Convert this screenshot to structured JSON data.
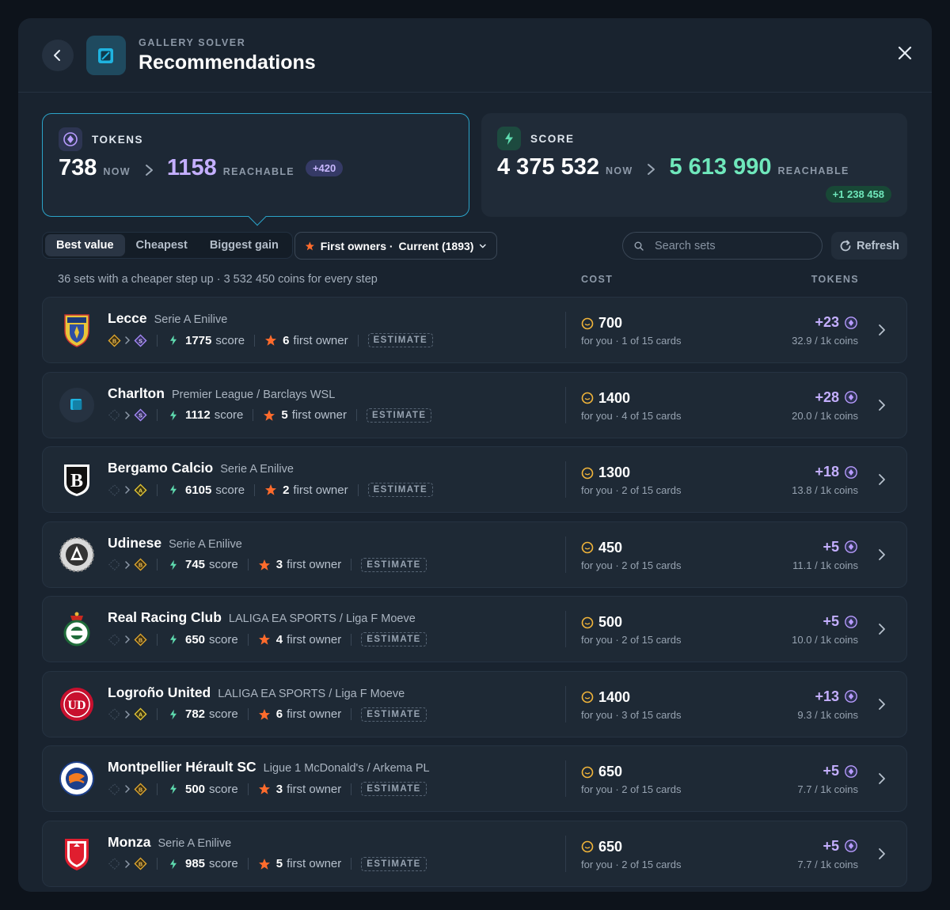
{
  "header": {
    "subtitle": "GALLERY SOLVER",
    "title": "Recommendations"
  },
  "tokens": {
    "label": "TOKENS",
    "now": "738",
    "now_label": "NOW",
    "reachable": "1158",
    "reachable_label": "REACHABLE",
    "gain": "+420"
  },
  "score": {
    "label": "SCORE",
    "now": "4 375 532",
    "now_label": "NOW",
    "reachable": "5 613 990",
    "reachable_label": "REACHABLE",
    "gain": "+1 238 458"
  },
  "sort_tabs": [
    "Best value",
    "Cheapest",
    "Biggest gain"
  ],
  "active_sort": "Best value",
  "filter": {
    "label": "First owners ·",
    "value": "Current (1893)"
  },
  "search": {
    "placeholder": "Search sets"
  },
  "refresh_label": "Refresh",
  "summary": "36 sets with a cheaper step up · 3 532 450 coins for every step",
  "columns": {
    "cost": "COST",
    "tokens": "TOKENS"
  },
  "colors": {
    "accent": "#2ba3c8",
    "token_purple": "#c4afff",
    "score_green": "#6fe7bb",
    "star_orange": "#ff6b2c",
    "coin_gold": "#f2b53a"
  },
  "rows": [
    {
      "name": "Lecce",
      "league": "Serie A Enilive",
      "from_tier": "B",
      "to_tier": "S",
      "score": "1775",
      "score_label": "score",
      "owners": "6",
      "owners_label": "first owner",
      "badge": "ESTIMATE",
      "cost": "700",
      "cost_sub": "for you · 1 of 15 cards",
      "gain": "+23",
      "gain_sub": "32.9 / 1k coins",
      "logo": "lecce-crest-icon"
    },
    {
      "name": "Charlton",
      "league": "Premier League / Barclays WSL",
      "from_tier": "",
      "to_tier": "S",
      "score": "1112",
      "score_label": "score",
      "owners": "5",
      "owners_label": "first owner",
      "badge": "ESTIMATE",
      "cost": "1400",
      "cost_sub": "for you · 4 of 15 cards",
      "gain": "+28",
      "gain_sub": "20.0 / 1k coins",
      "logo": "placeholder-logo-icon"
    },
    {
      "name": "Bergamo Calcio",
      "league": "Serie A Enilive",
      "from_tier": "",
      "to_tier": "A",
      "score": "6105",
      "score_label": "score",
      "owners": "2",
      "owners_label": "first owner",
      "badge": "ESTIMATE",
      "cost": "1300",
      "cost_sub": "for you · 2 of 15 cards",
      "gain": "+18",
      "gain_sub": "13.8 / 1k coins",
      "logo": "bergamo-crest-icon"
    },
    {
      "name": "Udinese",
      "league": "Serie A Enilive",
      "from_tier": "",
      "to_tier": "B",
      "score": "745",
      "score_label": "score",
      "owners": "3",
      "owners_label": "first owner",
      "badge": "ESTIMATE",
      "cost": "450",
      "cost_sub": "for you · 2 of 15 cards",
      "gain": "+5",
      "gain_sub": "11.1 / 1k coins",
      "logo": "udinese-crest-icon"
    },
    {
      "name": "Real Racing Club",
      "league": "LALIGA EA SPORTS / Liga F Moeve",
      "from_tier": "",
      "to_tier": "B",
      "score": "650",
      "score_label": "score",
      "owners": "4",
      "owners_label": "first owner",
      "badge": "ESTIMATE",
      "cost": "500",
      "cost_sub": "for you · 2 of 15 cards",
      "gain": "+5",
      "gain_sub": "10.0 / 1k coins",
      "logo": "racing-crest-icon"
    },
    {
      "name": "Logroño United",
      "league": "LALIGA EA SPORTS / Liga F Moeve",
      "from_tier": "",
      "to_tier": "A",
      "score": "782",
      "score_label": "score",
      "owners": "6",
      "owners_label": "first owner",
      "badge": "ESTIMATE",
      "cost": "1400",
      "cost_sub": "for you · 3 of 15 cards",
      "gain": "+13",
      "gain_sub": "9.3 / 1k coins",
      "logo": "logrono-crest-icon"
    },
    {
      "name": "Montpellier Hérault SC",
      "league": "Ligue 1 McDonald's / Arkema PL",
      "from_tier": "",
      "to_tier": "B",
      "score": "500",
      "score_label": "score",
      "owners": "3",
      "owners_label": "first owner",
      "badge": "ESTIMATE",
      "cost": "650",
      "cost_sub": "for you · 2 of 15 cards",
      "gain": "+5",
      "gain_sub": "7.7 / 1k coins",
      "logo": "montpellier-crest-icon"
    },
    {
      "name": "Monza",
      "league": "Serie A Enilive",
      "from_tier": "",
      "to_tier": "B",
      "score": "985",
      "score_label": "score",
      "owners": "5",
      "owners_label": "first owner",
      "badge": "ESTIMATE",
      "cost": "650",
      "cost_sub": "for you · 2 of 15 cards",
      "gain": "+5",
      "gain_sub": "7.7 / 1k coins",
      "logo": "monza-crest-icon"
    }
  ]
}
